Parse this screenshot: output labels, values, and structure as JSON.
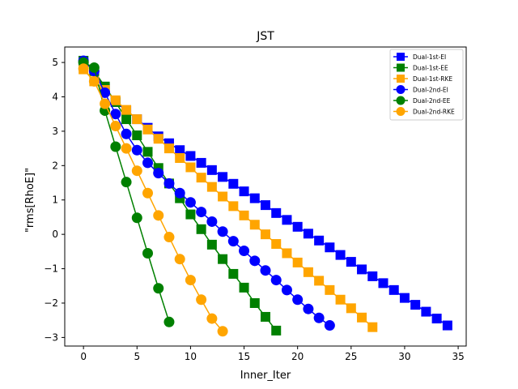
{
  "chart_data": {
    "type": "line",
    "title": "JST",
    "xlabel": "Inner_Iter",
    "ylabel": "\"rms[RhoE]\"",
    "xlim": [
      -1.75,
      35.75
    ],
    "ylim": [
      -3.25,
      5.45
    ],
    "xticks": [
      0,
      5,
      10,
      15,
      20,
      25,
      30,
      35
    ],
    "yticks": [
      -3,
      -2,
      -1,
      0,
      1,
      2,
      3,
      4,
      5
    ],
    "legend_position": "top-right",
    "series": [
      {
        "name": "Dual-1st-EI",
        "color": "#0000ff",
        "marker": "square",
        "x": [
          0,
          1,
          2,
          3,
          4,
          5,
          6,
          7,
          8,
          9,
          10,
          11,
          12,
          13,
          14,
          15,
          16,
          17,
          18,
          19,
          20,
          21,
          22,
          23,
          24,
          25,
          26,
          27,
          28,
          29,
          30,
          31,
          32,
          33,
          34
        ],
        "y": [
          5.05,
          4.75,
          4.25,
          3.85,
          3.6,
          3.35,
          3.1,
          2.85,
          2.65,
          2.45,
          2.28,
          2.08,
          1.87,
          1.67,
          1.47,
          1.25,
          1.05,
          0.85,
          0.62,
          0.42,
          0.22,
          0.02,
          -0.18,
          -0.38,
          -0.6,
          -0.8,
          -1.02,
          -1.22,
          -1.42,
          -1.62,
          -1.85,
          -2.05,
          -2.25,
          -2.45,
          -2.65
        ]
      },
      {
        "name": "Dual-1st-EE",
        "color": "#008000",
        "marker": "square",
        "x": [
          0,
          1,
          2,
          3,
          4,
          5,
          6,
          7,
          8,
          9,
          10,
          11,
          12,
          13,
          14,
          15,
          16,
          17,
          18
        ],
        "y": [
          5.05,
          4.75,
          4.3,
          3.85,
          3.35,
          2.88,
          2.4,
          1.93,
          1.48,
          1.05,
          0.58,
          0.15,
          -0.3,
          -0.72,
          -1.15,
          -1.55,
          -2.0,
          -2.4,
          -2.8
        ]
      },
      {
        "name": "Dual-1st-RKE",
        "color": "#ffa500",
        "marker": "square",
        "x": [
          0,
          1,
          2,
          3,
          4,
          5,
          6,
          7,
          8,
          9,
          10,
          11,
          12,
          13,
          14,
          15,
          16,
          17,
          18,
          19,
          20,
          21,
          22,
          23,
          24,
          25,
          26,
          27
        ],
        "y": [
          4.8,
          4.45,
          4.2,
          3.9,
          3.62,
          3.35,
          3.05,
          2.78,
          2.5,
          2.22,
          1.95,
          1.65,
          1.38,
          1.1,
          0.82,
          0.55,
          0.28,
          0.0,
          -0.28,
          -0.55,
          -0.82,
          -1.1,
          -1.35,
          -1.62,
          -1.9,
          -2.15,
          -2.42,
          -2.7
        ]
      },
      {
        "name": "Dual-2nd-EI",
        "color": "#0000ff",
        "marker": "circle",
        "x": [
          0,
          1,
          2,
          3,
          4,
          5,
          6,
          7,
          8,
          9,
          10,
          11,
          12,
          13,
          14,
          15,
          16,
          17,
          18,
          19,
          20,
          21,
          22,
          23
        ],
        "y": [
          5.05,
          4.75,
          4.12,
          3.5,
          2.92,
          2.45,
          2.08,
          1.78,
          1.48,
          1.2,
          0.93,
          0.65,
          0.37,
          0.08,
          -0.2,
          -0.48,
          -0.77,
          -1.05,
          -1.33,
          -1.62,
          -1.9,
          -2.17,
          -2.43,
          -2.65
        ]
      },
      {
        "name": "Dual-2nd-EE",
        "color": "#008000",
        "marker": "circle",
        "x": [
          0,
          1,
          2,
          3,
          4,
          5,
          6,
          7,
          8
        ],
        "y": [
          5.0,
          4.85,
          3.6,
          2.55,
          1.52,
          0.48,
          -0.55,
          -1.57,
          -2.55
        ]
      },
      {
        "name": "Dual-2nd-RKE",
        "color": "#ffa500",
        "marker": "circle",
        "x": [
          0,
          1,
          2,
          3,
          4,
          5,
          6,
          7,
          8,
          9,
          10,
          11,
          12,
          13
        ],
        "y": [
          4.82,
          4.45,
          3.8,
          3.15,
          2.5,
          1.85,
          1.2,
          0.55,
          -0.08,
          -0.72,
          -1.33,
          -1.9,
          -2.45,
          -2.82
        ]
      }
    ]
  }
}
